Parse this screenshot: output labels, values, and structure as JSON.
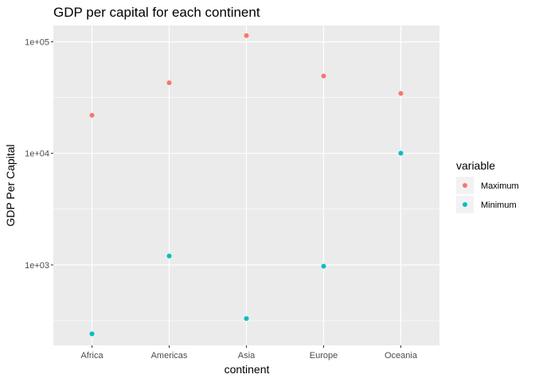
{
  "chart_data": {
    "type": "scatter",
    "title": "GDP per capital for each continent",
    "xlabel": "continent",
    "ylabel": "GDP Per Capital",
    "y_scale": "log10",
    "ylim": [
      190,
      140000
    ],
    "categories": [
      "Africa",
      "Americas",
      "Asia",
      "Europe",
      "Oceania"
    ],
    "y_ticks": [
      {
        "value": 1000,
        "label": "1e+03"
      },
      {
        "value": 10000,
        "label": "1e+04"
      },
      {
        "value": 100000,
        "label": "1e+05"
      }
    ],
    "legend": {
      "title": "variable",
      "position": "right"
    },
    "grid": true,
    "background_color": "#ebebeb",
    "series": [
      {
        "name": "Maximum",
        "color": "#f8766d",
        "values": [
          21950,
          42950,
          113500,
          49360,
          34440
        ]
      },
      {
        "name": "Minimum",
        "color": "#00bfc4",
        "values": [
          241,
          1202,
          331,
          974,
          10040
        ]
      }
    ]
  }
}
